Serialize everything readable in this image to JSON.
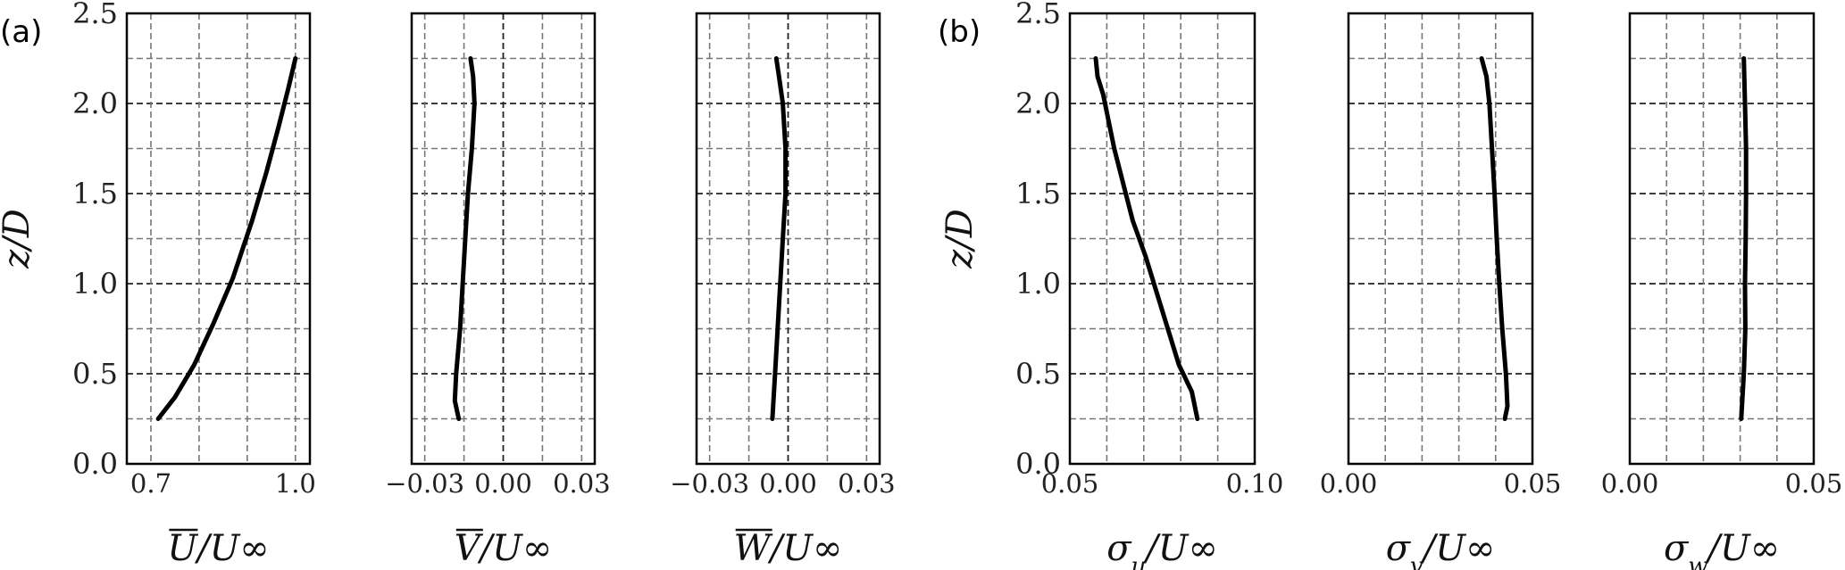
{
  "panel_labels": [
    "(a)",
    "(b)"
  ],
  "chart_data": [
    {
      "type": "line",
      "panel": "(a)",
      "xlabel": "U/U∞",
      "xlabel_main": "U",
      "xlabel_overline": true,
      "xlabel_rest": "/U∞",
      "ylabel": "z/D",
      "xlim": [
        0.65,
        1.03
      ],
      "ylim": [
        0,
        2.5
      ],
      "xticks": [
        0.7,
        1.0
      ],
      "xtick_labels": [
        "0.7",
        "1.0"
      ],
      "xgrid": [
        0.7,
        0.8,
        0.9,
        1.0
      ],
      "yticks": [
        0,
        0.5,
        1.0,
        1.5,
        2.0,
        2.5
      ],
      "ytick_labels": [
        "0.0",
        "0.5",
        "1.0",
        "1.5",
        "2.0",
        "2.5"
      ],
      "show_yticklabels": true,
      "grid": true,
      "x": [
        0.715,
        0.75,
        0.79,
        0.83,
        0.87,
        0.91,
        0.94,
        0.965,
        0.985,
        1.0
      ],
      "y": [
        0.25,
        0.37,
        0.55,
        0.78,
        1.03,
        1.35,
        1.62,
        1.87,
        2.08,
        2.25
      ]
    },
    {
      "type": "line",
      "panel": "(a)",
      "xlabel": "V/U∞",
      "xlabel_main": "V",
      "xlabel_overline": true,
      "xlabel_rest": "/U∞",
      "ylabel": "",
      "xlim": [
        -0.035,
        0.035
      ],
      "ylim": [
        0,
        2.5
      ],
      "xticks": [
        -0.03,
        0.0,
        0.03
      ],
      "xtick_labels": [
        "−0.03",
        "0.00",
        "0.03"
      ],
      "xgrid": [
        -0.03,
        -0.015,
        0.0,
        0.015,
        0.03
      ],
      "yticks": [
        0,
        0.5,
        1.0,
        1.5,
        2.0,
        2.5
      ],
      "ytick_labels": [],
      "show_yticklabels": false,
      "grid": true,
      "x": [
        -0.017,
        -0.0185,
        -0.018,
        -0.0165,
        -0.0155,
        -0.0145,
        -0.0135,
        -0.012,
        -0.011,
        -0.0115,
        -0.0125
      ],
      "y": [
        0.25,
        0.35,
        0.5,
        0.75,
        1.0,
        1.25,
        1.5,
        1.75,
        2.0,
        2.15,
        2.25
      ]
    },
    {
      "type": "line",
      "panel": "(a)",
      "xlabel": "W/U∞",
      "xlabel_main": "W",
      "xlabel_overline": true,
      "xlabel_rest": "/U∞",
      "ylabel": "",
      "xlim": [
        -0.035,
        0.035
      ],
      "ylim": [
        0,
        2.5
      ],
      "xticks": [
        -0.03,
        0.0,
        0.03
      ],
      "xtick_labels": [
        "−0.03",
        "0.00",
        "0.03"
      ],
      "xgrid": [
        -0.03,
        -0.015,
        0.0,
        0.015,
        0.03
      ],
      "yticks": [
        0,
        0.5,
        1.0,
        1.5,
        2.0,
        2.5
      ],
      "ytick_labels": [],
      "show_yticklabels": false,
      "grid": true,
      "x": [
        -0.006,
        -0.005,
        -0.004,
        -0.003,
        -0.002,
        -0.001,
        -0.001,
        -0.002,
        -0.0035,
        -0.0045
      ],
      "y": [
        0.25,
        0.5,
        0.75,
        1.0,
        1.25,
        1.5,
        1.75,
        2.0,
        2.15,
        2.25
      ]
    },
    {
      "type": "line",
      "panel": "(b)",
      "xlabel": "σu/U∞",
      "xlabel_main": "σ",
      "xlabel_sub": "u",
      "xlabel_rest": "/U∞",
      "ylabel": "z/D",
      "xlim": [
        0.05,
        0.1
      ],
      "ylim": [
        0,
        2.5
      ],
      "xticks": [
        0.05,
        0.1
      ],
      "xtick_labels": [
        "0.05",
        "0.10"
      ],
      "xgrid": [
        0.06,
        0.07,
        0.08,
        0.09
      ],
      "yticks": [
        0,
        0.5,
        1.0,
        1.5,
        2.0,
        2.5
      ],
      "ytick_labels": [
        "0.0",
        "0.5",
        "1.0",
        "1.5",
        "2.0",
        "2.5"
      ],
      "show_yticklabels": true,
      "grid": true,
      "x": [
        0.0845,
        0.083,
        0.0795,
        0.0765,
        0.0735,
        0.0705,
        0.067,
        0.0645,
        0.062,
        0.0605,
        0.059,
        0.0575,
        0.057
      ],
      "y": [
        0.25,
        0.4,
        0.55,
        0.75,
        0.95,
        1.15,
        1.35,
        1.55,
        1.75,
        1.9,
        2.05,
        2.15,
        2.25
      ]
    },
    {
      "type": "line",
      "panel": "(b)",
      "xlabel": "σv/U∞",
      "xlabel_main": "σ",
      "xlabel_sub": "v",
      "xlabel_rest": "/U∞",
      "ylabel": "",
      "xlim": [
        0.0,
        0.05
      ],
      "ylim": [
        0,
        2.5
      ],
      "xticks": [
        0.0,
        0.05
      ],
      "xtick_labels": [
        "0.00",
        "0.05"
      ],
      "xgrid": [
        0.01,
        0.02,
        0.03,
        0.04
      ],
      "yticks": [
        0,
        0.5,
        1.0,
        1.5,
        2.0,
        2.5
      ],
      "ytick_labels": [],
      "show_yticklabels": false,
      "grid": true,
      "x": [
        0.0425,
        0.0432,
        0.0428,
        0.0418,
        0.041,
        0.0403,
        0.0397,
        0.039,
        0.0383,
        0.0375,
        0.0362
      ],
      "y": [
        0.25,
        0.32,
        0.5,
        0.75,
        1.0,
        1.25,
        1.5,
        1.75,
        2.0,
        2.15,
        2.25
      ]
    },
    {
      "type": "line",
      "panel": "(b)",
      "xlabel": "σw/U∞",
      "xlabel_main": "σ",
      "xlabel_sub": "w",
      "xlabel_rest": "/U∞",
      "ylabel": "",
      "xlim": [
        0.0,
        0.05
      ],
      "ylim": [
        0,
        2.5
      ],
      "xticks": [
        0.0,
        0.05
      ],
      "xtick_labels": [
        "0.00",
        "0.05"
      ],
      "xgrid": [
        0.01,
        0.02,
        0.03,
        0.04
      ],
      "yticks": [
        0,
        0.5,
        1.0,
        1.5,
        2.0,
        2.5
      ],
      "ytick_labels": [],
      "show_yticklabels": false,
      "grid": true,
      "x": [
        0.0303,
        0.031,
        0.0314,
        0.0313,
        0.0315,
        0.0316,
        0.0316,
        0.0313,
        0.031
      ],
      "y": [
        0.25,
        0.5,
        0.75,
        1.0,
        1.25,
        1.5,
        1.75,
        2.0,
        2.25
      ]
    }
  ]
}
